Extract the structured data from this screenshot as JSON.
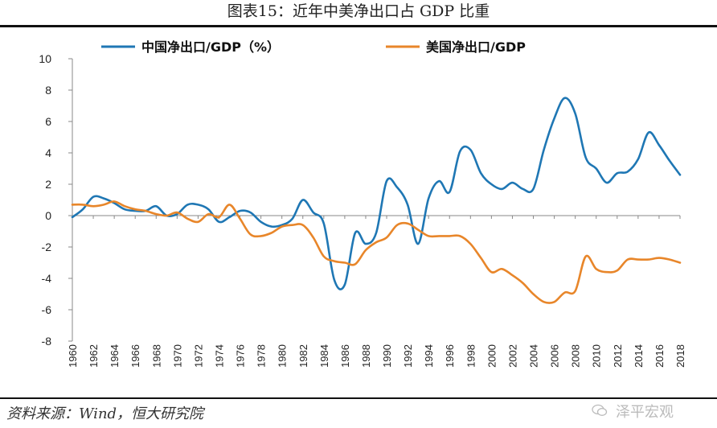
{
  "page": {
    "title": "图表15：近年中美净出口占 GDP 比重",
    "source": "资料来源：Wind，恒大研究院",
    "watermark": "泽平宏观"
  },
  "chart_data": {
    "type": "line",
    "title": "图表15：近年中美净出口占 GDP 比重",
    "xlabel": "",
    "ylabel": "",
    "ylim": [
      -8,
      10
    ],
    "yticks": [
      10,
      8,
      6,
      4,
      2,
      0,
      -2,
      -4,
      -6,
      -8
    ],
    "xlim": [
      1960,
      2018
    ],
    "xticks": [
      1960,
      1962,
      1964,
      1966,
      1968,
      1970,
      1972,
      1974,
      1976,
      1978,
      1980,
      1982,
      1984,
      1986,
      1988,
      1990,
      1992,
      1994,
      1996,
      1998,
      2000,
      2002,
      2004,
      2006,
      2008,
      2010,
      2012,
      2014,
      2016,
      2018
    ],
    "legend_position": "top",
    "grid": false,
    "x": [
      1960,
      1961,
      1962,
      1963,
      1964,
      1965,
      1966,
      1967,
      1968,
      1969,
      1970,
      1971,
      1972,
      1973,
      1974,
      1975,
      1976,
      1977,
      1978,
      1979,
      1980,
      1981,
      1982,
      1983,
      1984,
      1985,
      1986,
      1987,
      1988,
      1989,
      1990,
      1991,
      1992,
      1993,
      1994,
      1995,
      1996,
      1997,
      1998,
      1999,
      2000,
      2001,
      2002,
      2003,
      2004,
      2005,
      2006,
      2007,
      2008,
      2009,
      2010,
      2011,
      2012,
      2013,
      2014,
      2015,
      2016,
      2017,
      2018
    ],
    "series": [
      {
        "name": "中国净出口/GDP（%）",
        "color": "#1f77b4",
        "values": [
          -0.1,
          0.4,
          1.2,
          1.1,
          0.8,
          0.4,
          0.3,
          0.3,
          0.6,
          0.0,
          0.1,
          0.7,
          0.7,
          0.4,
          -0.4,
          -0.1,
          0.3,
          0.2,
          -0.4,
          -0.7,
          -0.6,
          -0.2,
          1.0,
          0.2,
          -0.5,
          -4.1,
          -4.4,
          -1.1,
          -1.8,
          -1.1,
          2.2,
          1.8,
          0.7,
          -1.8,
          1.1,
          2.2,
          1.5,
          4.1,
          4.2,
          2.7,
          2.0,
          1.7,
          2.1,
          1.7,
          1.7,
          4.2,
          6.2,
          7.5,
          6.5,
          3.7,
          3.0,
          2.1,
          2.7,
          2.8,
          3.6,
          5.3,
          4.5,
          3.5,
          2.6
        ]
      },
      {
        "name": "美国净出口/GDP",
        "color": "#e8862a",
        "values": [
          0.7,
          0.7,
          0.6,
          0.7,
          0.9,
          0.6,
          0.4,
          0.3,
          0.1,
          0.0,
          0.2,
          -0.2,
          -0.4,
          0.1,
          -0.1,
          0.7,
          -0.2,
          -1.2,
          -1.3,
          -1.1,
          -0.7,
          -0.6,
          -0.6,
          -1.4,
          -2.6,
          -2.9,
          -3.0,
          -3.1,
          -2.2,
          -1.7,
          -1.4,
          -0.6,
          -0.5,
          -0.9,
          -1.3,
          -1.3,
          -1.3,
          -1.3,
          -1.8,
          -2.7,
          -3.6,
          -3.4,
          -3.8,
          -4.3,
          -5.0,
          -5.5,
          -5.5,
          -4.9,
          -4.8,
          -2.6,
          -3.4,
          -3.6,
          -3.5,
          -2.8,
          -2.8,
          -2.8,
          -2.7,
          -2.8,
          -3.0
        ]
      }
    ]
  }
}
